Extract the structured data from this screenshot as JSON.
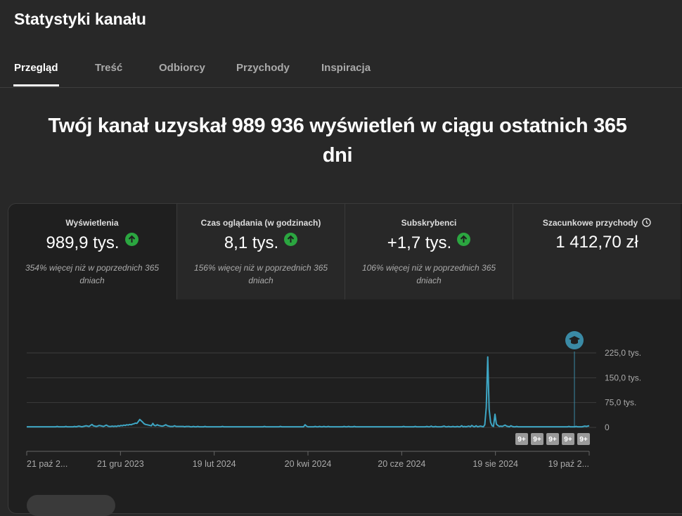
{
  "header": {
    "title": "Statystyki kanału"
  },
  "tabs": [
    {
      "label": "Przegląd",
      "active": true
    },
    {
      "label": "Treść"
    },
    {
      "label": "Odbiorcy"
    },
    {
      "label": "Przychody"
    },
    {
      "label": "Inspiracja"
    }
  ],
  "headline": {
    "text": "Twój kanał uzyskał 989 936 wyświetleń w ciągu ostatnich 365 dni"
  },
  "metrics": [
    {
      "label": "Wyświetlenia",
      "value": "989,9 tys.",
      "trend": "up",
      "note": "354% więcej niż w poprzednich 365 dniach"
    },
    {
      "label": "Czas oglądania (w godzinach)",
      "value": "8,1 tys.",
      "trend": "up",
      "note": "156% więcej niż w poprzednich 365 dniach"
    },
    {
      "label": "Subskrybenci",
      "value": "+1,7 tys.",
      "trend": "up",
      "note": "106% więcej niż w poprzednich 365 dniach"
    },
    {
      "label": "Szacunkowe przychody",
      "value": "1 412,70 zł",
      "icon": "clock-icon"
    }
  ],
  "colors": {
    "line": "#3ea6c4",
    "up": "#2ba640",
    "marker": "#3a8aa5"
  },
  "chart_data": {
    "type": "line",
    "series": [
      {
        "values": [
          2,
          2,
          2,
          2,
          2,
          2,
          2,
          2,
          2,
          2,
          2,
          2,
          2,
          2,
          2,
          2,
          2,
          2,
          2,
          2,
          2,
          3,
          2,
          2,
          2,
          2,
          2,
          3,
          2,
          2,
          2,
          2,
          2,
          3,
          2,
          3,
          4,
          3,
          2,
          3,
          4,
          5,
          4,
          3,
          6,
          9,
          5,
          4,
          3,
          4,
          6,
          5,
          4,
          3,
          5,
          7,
          4,
          3,
          3,
          4,
          3,
          4,
          3,
          5,
          4,
          6,
          5,
          7,
          6,
          8,
          7,
          9,
          8,
          10,
          11,
          13,
          12,
          18,
          24,
          20,
          16,
          11,
          9,
          8,
          7,
          6,
          5,
          12,
          6,
          5,
          8,
          6,
          5,
          4,
          4,
          6,
          8,
          5,
          4,
          3,
          3,
          3,
          5,
          3,
          3,
          3,
          3,
          3,
          3,
          2,
          3,
          3,
          3,
          2,
          2,
          3,
          2,
          2,
          3,
          2,
          2,
          2,
          2,
          3,
          2,
          2,
          2,
          2,
          2,
          2,
          2,
          2,
          2,
          2,
          2,
          3,
          2,
          2,
          2,
          2,
          2,
          2,
          2,
          2,
          2,
          2,
          2,
          2,
          2,
          2,
          2,
          2,
          2,
          2,
          2,
          2,
          2,
          2,
          2,
          2,
          2,
          2,
          2,
          2,
          3,
          2,
          2,
          2,
          2,
          2,
          2,
          2,
          2,
          2,
          2,
          3,
          2,
          2,
          2,
          2,
          2,
          2,
          2,
          2,
          2,
          2,
          2,
          2,
          2,
          2,
          2,
          2,
          8,
          4,
          2,
          2,
          2,
          2,
          2,
          3,
          2,
          2,
          3,
          2,
          2,
          3,
          2,
          2,
          3,
          2,
          2,
          2,
          2,
          2,
          2,
          2,
          2,
          2,
          2,
          3,
          2,
          2,
          3,
          2,
          2,
          2,
          3,
          2,
          2,
          2,
          2,
          2,
          2,
          2,
          2,
          2,
          2,
          2,
          2,
          2,
          2,
          2,
          2,
          2,
          2,
          2,
          2,
          2,
          2,
          2,
          2,
          2,
          2,
          2,
          2,
          2,
          2,
          2,
          2,
          2,
          3,
          2,
          2,
          2,
          2,
          2,
          2,
          2,
          3,
          2,
          2,
          2,
          2,
          2,
          2,
          2,
          3,
          2,
          2,
          4,
          2,
          2,
          3,
          2,
          2,
          2,
          2,
          3,
          4,
          2,
          2,
          3,
          2,
          2,
          3,
          2,
          2,
          3,
          2,
          2,
          5,
          2,
          3,
          2,
          3,
          4,
          2,
          6,
          3,
          2,
          5,
          2,
          3,
          4,
          3,
          2,
          8,
          60,
          213,
          55,
          15,
          5,
          3,
          40,
          10,
          6,
          3,
          4,
          3,
          5,
          7,
          4,
          3,
          2,
          5,
          3,
          2,
          2,
          3,
          2,
          2,
          2,
          2,
          2,
          2,
          2,
          2,
          2,
          2,
          2,
          2,
          2,
          2,
          2,
          2,
          2,
          2,
          2,
          2,
          2,
          2,
          2,
          2,
          2,
          2,
          2,
          2,
          2,
          2,
          2,
          2,
          2,
          2,
          2,
          3,
          2,
          2,
          2,
          2,
          3,
          2,
          2,
          2,
          2,
          3,
          4,
          3,
          4,
          5
        ]
      }
    ],
    "x_ticks": [
      "21 paź 2...",
      "21 gru 2023",
      "19 lut 2024",
      "20 kwi 2024",
      "20 cze 2024",
      "19 sie 2024",
      "19 paź 2..."
    ],
    "y_ticks": [
      "225,0 tys.",
      "150,0 tys.",
      "75,0 tys.",
      "0"
    ],
    "ylim": [
      0,
      225
    ],
    "ylabel_unit": "tys.",
    "grid": true,
    "badges": [
      "9+",
      "9+",
      "9+",
      "9+",
      "9+"
    ]
  }
}
